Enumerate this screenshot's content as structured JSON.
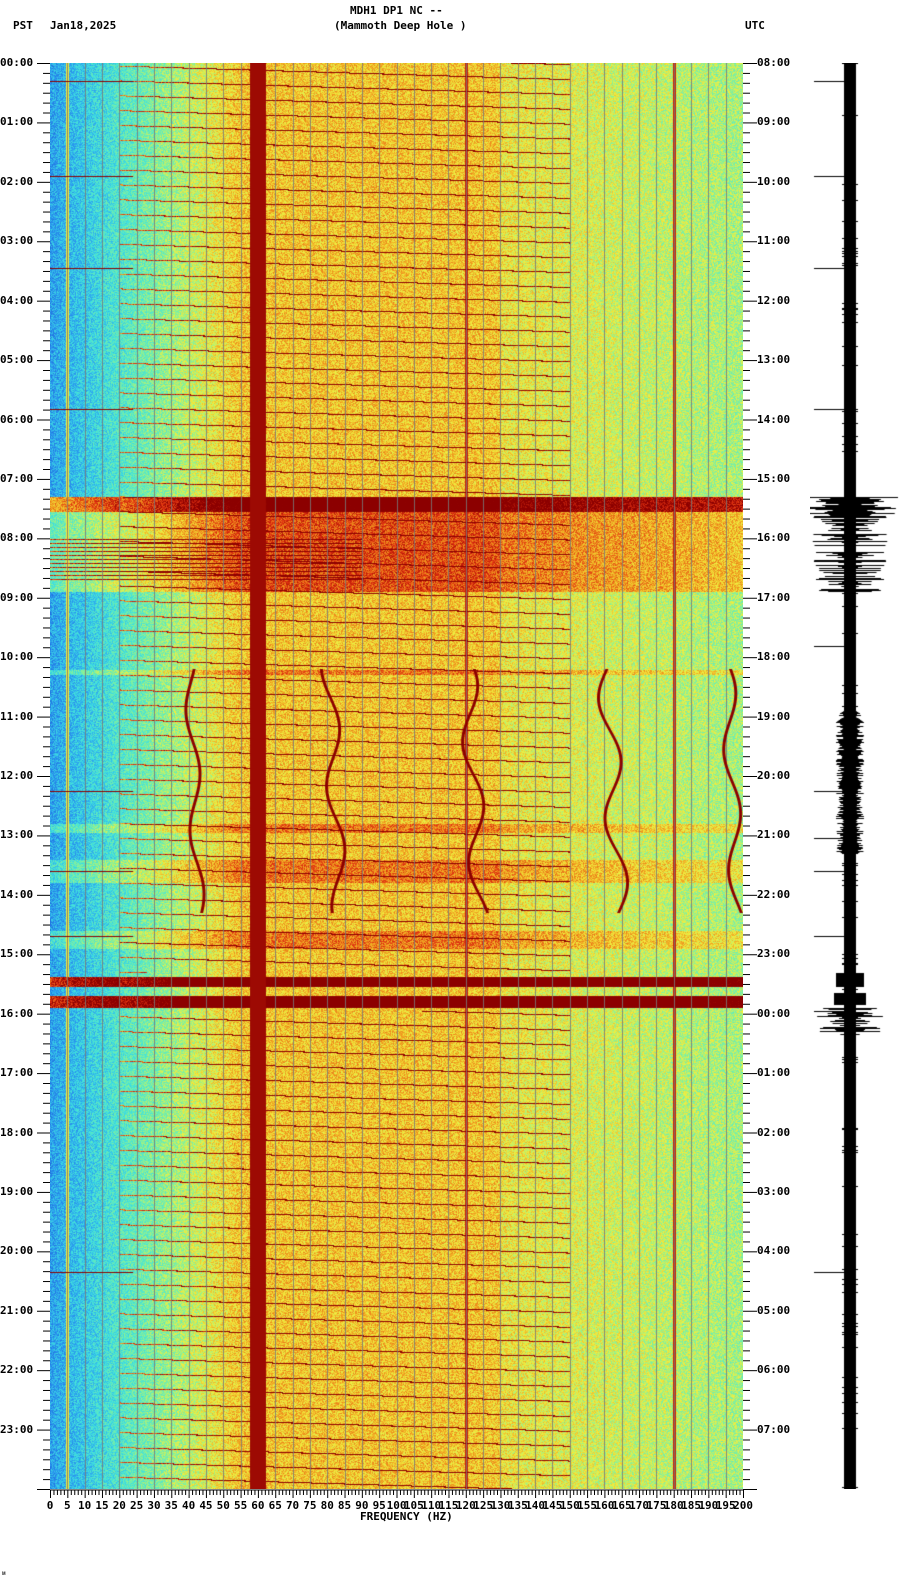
{
  "header": {
    "station": "MDH1 DP1 NC --",
    "site": "(Mammoth Deep Hole )",
    "left_tz": "PST",
    "date": "Jan18,2025",
    "right_tz": "UTC"
  },
  "footer_mark": "ᴍ",
  "chart_data": {
    "type": "heatmap",
    "title": "MDH1 DP1 NC -- (Mammoth Deep Hole ) spectrogram",
    "date": "Jan18,2025",
    "xlabel": "FREQUENCY (HZ)",
    "ylabel_left": "PST",
    "ylabel_right": "UTC",
    "xlim": [
      0,
      200
    ],
    "x_ticks": [
      0,
      5,
      10,
      15,
      20,
      25,
      30,
      35,
      40,
      45,
      50,
      55,
      60,
      65,
      70,
      75,
      80,
      85,
      90,
      95,
      100,
      105,
      110,
      115,
      120,
      125,
      130,
      135,
      140,
      145,
      150,
      155,
      160,
      165,
      170,
      175,
      180,
      185,
      190,
      195,
      200
    ],
    "y_ticks_left": [
      "00:00",
      "01:00",
      "02:00",
      "03:00",
      "04:00",
      "05:00",
      "06:00",
      "07:00",
      "08:00",
      "09:00",
      "10:00",
      "11:00",
      "12:00",
      "13:00",
      "14:00",
      "15:00",
      "16:00",
      "17:00",
      "18:00",
      "19:00",
      "20:00",
      "21:00",
      "22:00",
      "23:00"
    ],
    "y_ticks_right": [
      "08:00",
      "09:00",
      "10:00",
      "11:00",
      "12:00",
      "13:00",
      "14:00",
      "15:00",
      "16:00",
      "17:00",
      "18:00",
      "19:00",
      "20:00",
      "21:00",
      "22:00",
      "23:00",
      "00:00",
      "01:00",
      "02:00",
      "03:00",
      "04:00",
      "05:00",
      "06:00",
      "07:00"
    ],
    "grid": true,
    "grid_spacing_hz": 5,
    "colormap": [
      "#1e5fd8",
      "#2b9cf0",
      "#3ee0e0",
      "#7ff0a0",
      "#f0f040",
      "#f0a020",
      "#e03010",
      "#8b0000"
    ],
    "persistent_lines_hz": [
      5,
      60,
      120,
      180
    ],
    "strong_line_hz": 60,
    "events": [
      {
        "start_pst": "07:20",
        "end_pst": "08:50",
        "type": "broadband noise bursts",
        "band_hz": [
          0,
          200
        ]
      },
      {
        "start_pst": "10:10",
        "end_pst": "15:10",
        "type": "wandering tones",
        "band_hz": [
          35,
          200
        ]
      },
      {
        "start_pst": "15:25",
        "end_pst": "15:35",
        "type": "strong broadband",
        "band_hz": [
          0,
          200
        ]
      },
      {
        "start_pst": "15:45",
        "end_pst": "15:55",
        "type": "strong broadband",
        "band_hz": [
          0,
          200
        ]
      }
    ],
    "seismogram_events_pst": [
      "07:25",
      "07:50",
      "08:15",
      "15:25",
      "15:45",
      "16:10"
    ]
  }
}
